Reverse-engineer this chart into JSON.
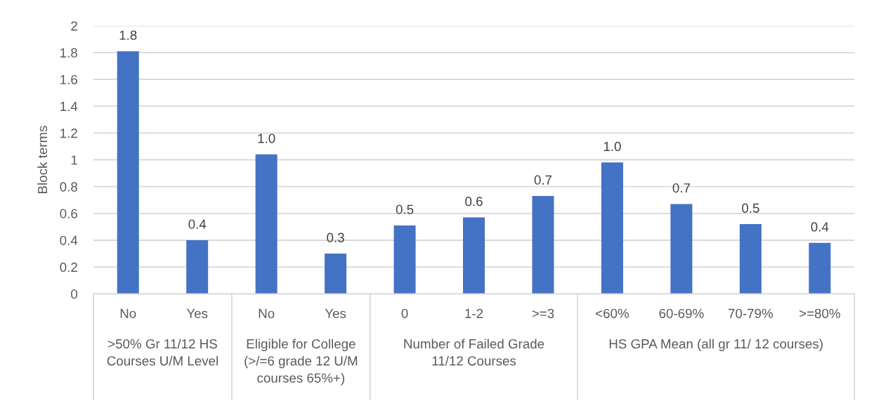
{
  "chart_data": {
    "type": "bar",
    "ylabel": "Block terms",
    "categories": [
      "No",
      "Yes",
      "No",
      "Yes",
      "0",
      "1-2",
      ">=3",
      "<60%",
      "60-69%",
      "70-79%",
      ">=80%"
    ],
    "values": [
      1.81,
      0.4,
      1.04,
      0.3,
      0.51,
      0.57,
      0.73,
      0.98,
      0.67,
      0.52,
      0.38
    ],
    "value_labels": [
      "1.8",
      "0.4",
      "1.0",
      "0.3",
      "0.5",
      "0.6",
      "0.7",
      "1.0",
      "0.7",
      "0.5",
      "0.4"
    ],
    "color": "#4472c4",
    "ylim": [
      0,
      2
    ],
    "yticks": [
      0,
      0.2,
      0.4,
      0.6,
      0.8,
      1,
      1.2,
      1.4,
      1.6,
      1.8,
      2
    ],
    "grid": "y",
    "annotations": [
      ">50% Gr 11/12 HS\nCourses U/M Level",
      "Eligible for College\n(>/=6 grade 12 U/M\ncourses 65%+)",
      "Number of Failed Grade\n11/12 Courses",
      "HS GPA Mean (all gr 11/ 12 courses)"
    ]
  }
}
